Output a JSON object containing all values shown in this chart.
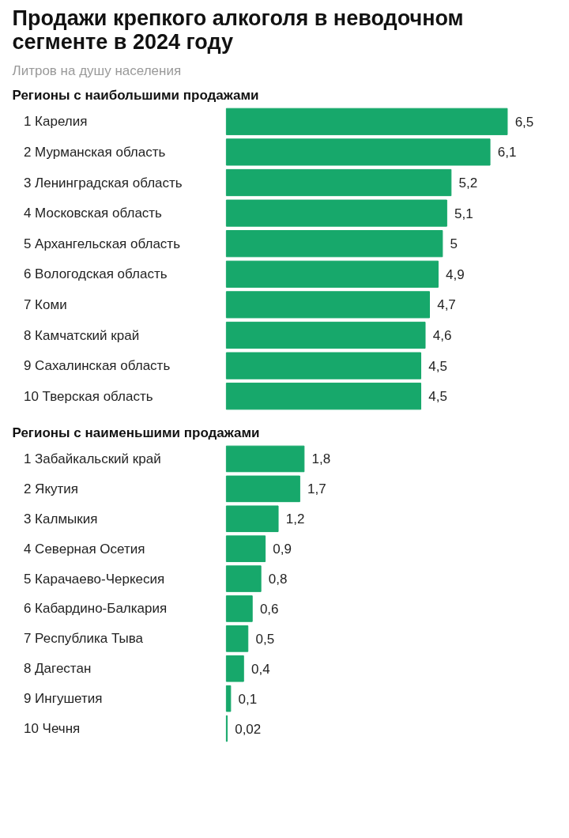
{
  "chart_data": [
    {
      "type": "bar",
      "orientation": "horizontal",
      "title": "Продажи крепкого алкоголя в неводочном сегменте в 2024 году",
      "subtitle": "Литров на душу населения",
      "annotations": [
        "Регионы с наибольшими продажами"
      ],
      "categories": [
        "1 Карелия",
        "2 Мурманская область",
        "3 Ленинградская область",
        "4 Московская область",
        "5 Архангельская область",
        "6 Вологодская область",
        "7 Коми",
        "8 Камчатский край",
        "9 Сахалинская область",
        "10 Тверская область"
      ],
      "values": [
        6.5,
        6.1,
        5.2,
        5.1,
        5,
        4.9,
        4.7,
        4.6,
        4.5,
        4.5
      ],
      "color": "#17a86b",
      "value_labels": [
        "6,5",
        "6,1",
        "5,2",
        "5,1",
        "5",
        "4,9",
        "4,7",
        "4,6",
        "4,5",
        "4,5"
      ]
    },
    {
      "type": "bar",
      "orientation": "horizontal",
      "annotations": [
        "Регионы с наименьшими продажами"
      ],
      "categories": [
        "1 Забайкальский край",
        "2 Якутия",
        "3 Калмыкия",
        "4 Северная Осетия",
        "5 Карачаево-Черкесия",
        "6 Кабардино-Балкария",
        "7 Республика Тыва",
        "8 Дагестан",
        "9 Ингушетия",
        "10 Чечня"
      ],
      "values": [
        1.8,
        1.7,
        1.2,
        0.9,
        0.8,
        0.6,
        0.5,
        0.4,
        0.1,
        0.02
      ],
      "color": "#17a86b",
      "value_labels": [
        "1,8",
        "1,7",
        "1,2",
        "0,9",
        "0,8",
        "0,6",
        "0,5",
        "0,4",
        "0,1",
        "0,02"
      ]
    }
  ]
}
